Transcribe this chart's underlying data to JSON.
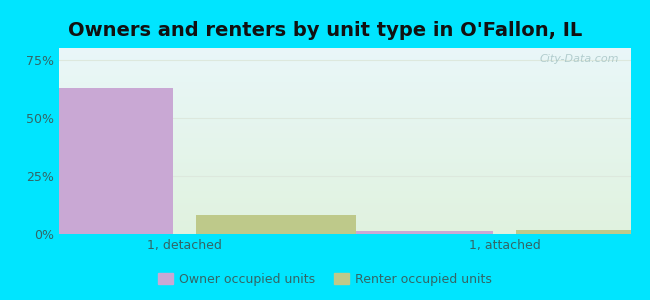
{
  "title": "Owners and renters by unit type in O'Fallon, IL",
  "title_fontsize": 14,
  "categories": [
    "1, detached",
    "1, attached"
  ],
  "owner_values": [
    63.0,
    1.2
  ],
  "renter_values": [
    8.0,
    1.8
  ],
  "owner_color": "#c9a8d4",
  "renter_color": "#bec98a",
  "ylabel_ticks": [
    "0%",
    "25%",
    "50%",
    "75%"
  ],
  "ytick_vals": [
    0,
    25,
    50,
    75
  ],
  "ylim": [
    0,
    80
  ],
  "outer_bg": "#00e5ff",
  "bar_width": 0.28,
  "x_positions": [
    0.22,
    0.78
  ],
  "xlim": [
    0.0,
    1.0
  ],
  "watermark": "City-Data.com",
  "legend_labels": [
    "Owner occupied units",
    "Renter occupied units"
  ],
  "tick_color": "#5a8080",
  "grid_color": "#dde8dd",
  "title_color": "#111111",
  "label_color": "#336666"
}
